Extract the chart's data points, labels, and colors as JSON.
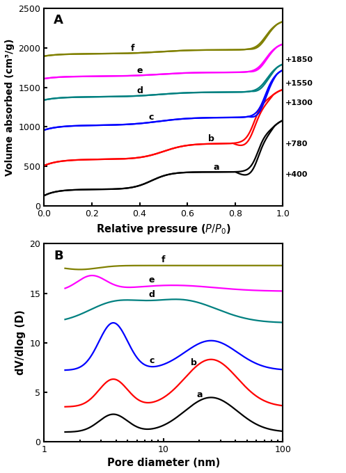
{
  "panel_A": {
    "title": "A",
    "xlabel": "Relative pressure ($P/P_{0}$)",
    "ylabel": "Volume absorbed (cm³/g)",
    "xlim": [
      0.0,
      1.0
    ],
    "ylim": [
      0,
      2500
    ],
    "yticks": [
      0,
      500,
      1000,
      1500,
      2000,
      2500
    ],
    "xticks": [
      0.0,
      0.2,
      0.4,
      0.6,
      0.8,
      1.0
    ],
    "offset_labels": [
      "+400",
      "+780",
      "+1300",
      "+1550",
      "+1850"
    ],
    "colors": [
      "black",
      "red",
      "blue",
      "#008080",
      "magenta",
      "#808000"
    ],
    "curve_labels": [
      "a",
      "b",
      "c",
      "d",
      "e",
      "f"
    ]
  },
  "panel_B": {
    "title": "B",
    "xlabel": "Pore diameter (nm)",
    "ylabel": "dV/dlog (D)",
    "xlim_log": [
      1,
      100
    ],
    "ylim": [
      0,
      20
    ],
    "yticks": [
      0,
      5,
      10,
      15,
      20
    ],
    "colors": [
      "black",
      "red",
      "blue",
      "#008080",
      "magenta",
      "#808000"
    ],
    "curve_labels": [
      "a",
      "b",
      "c",
      "d",
      "e",
      "f"
    ]
  }
}
